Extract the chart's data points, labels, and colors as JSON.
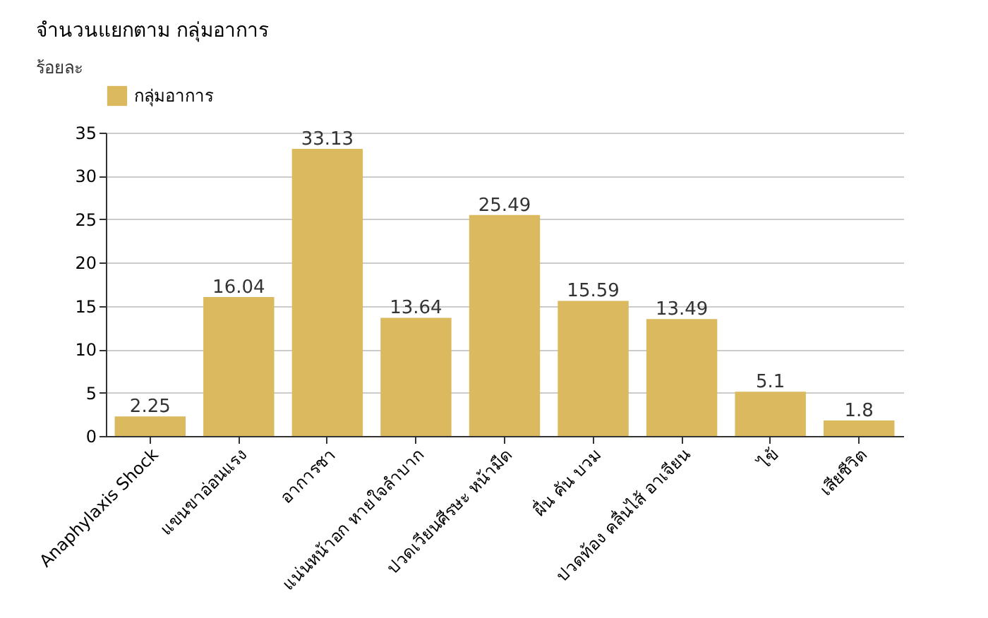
{
  "chart_data": {
    "type": "bar",
    "title": "จำนวนแยกตาม กลุ่มอาการ",
    "ylabel": "ร้อยละ",
    "categories": [
      "Anaphylaxis Shock",
      "แขนขาอ่อนแรง",
      "อาการชา",
      "แน่นหน้าอก หายใจลำบาก",
      "ปวดเวียนศีรษะ หน้ามืด",
      "ผื่น คัน บวม",
      "ปวดท้อง คลื่นไส้ อาเจียน",
      "ไข้",
      "เสียชีวิต"
    ],
    "series": [
      {
        "name": "กลุ่มอาการ",
        "color": "#dbba5f",
        "values": [
          2.25,
          16.04,
          33.13,
          13.64,
          25.49,
          15.59,
          13.49,
          5.1,
          1.8
        ]
      }
    ],
    "ylim": [
      0,
      35
    ],
    "yticks": [
      0,
      5,
      10,
      15,
      20,
      25,
      30,
      35
    ],
    "grid": "y",
    "legend": "top",
    "data_labels": true
  }
}
